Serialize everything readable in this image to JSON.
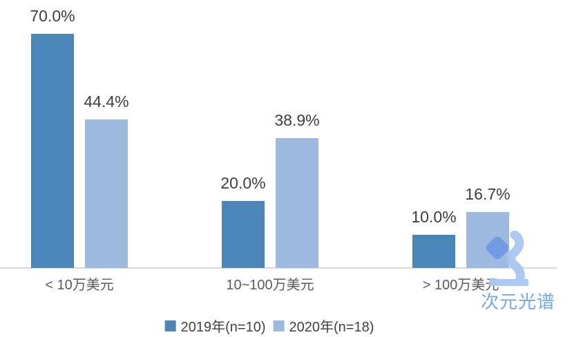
{
  "chart_data": {
    "type": "bar",
    "title": "",
    "categories": [
      "< 10万美元",
      "10~100万美元",
      "> 100万美元"
    ],
    "series": [
      {
        "name": "2019年(n=10)",
        "values": [
          70.0,
          20.0,
          10.0
        ],
        "value_labels": [
          "70.0%",
          "20.0%",
          "10.0%"
        ],
        "color": "#4C86B8"
      },
      {
        "name": "2020年(n=18)",
        "values": [
          44.4,
          38.9,
          16.7
        ],
        "value_labels": [
          "44.4%",
          "38.9%",
          "16.7%"
        ],
        "color": "#9DB9E0"
      }
    ],
    "unit": "%",
    "ylim": [
      0,
      75
    ],
    "grid": false,
    "legend_position": "bottom",
    "axis_line_color": "#D9D9D9",
    "value_label_color": "#3D3D3D",
    "category_label_color": "#5A5A5A"
  },
  "watermark": {
    "text": "次元光谱",
    "text_color": "#72A7E9",
    "icon": "microscope-logo",
    "icon_color_primary": "#6D9BE3",
    "icon_color_secondary": "#A9C6F2"
  }
}
